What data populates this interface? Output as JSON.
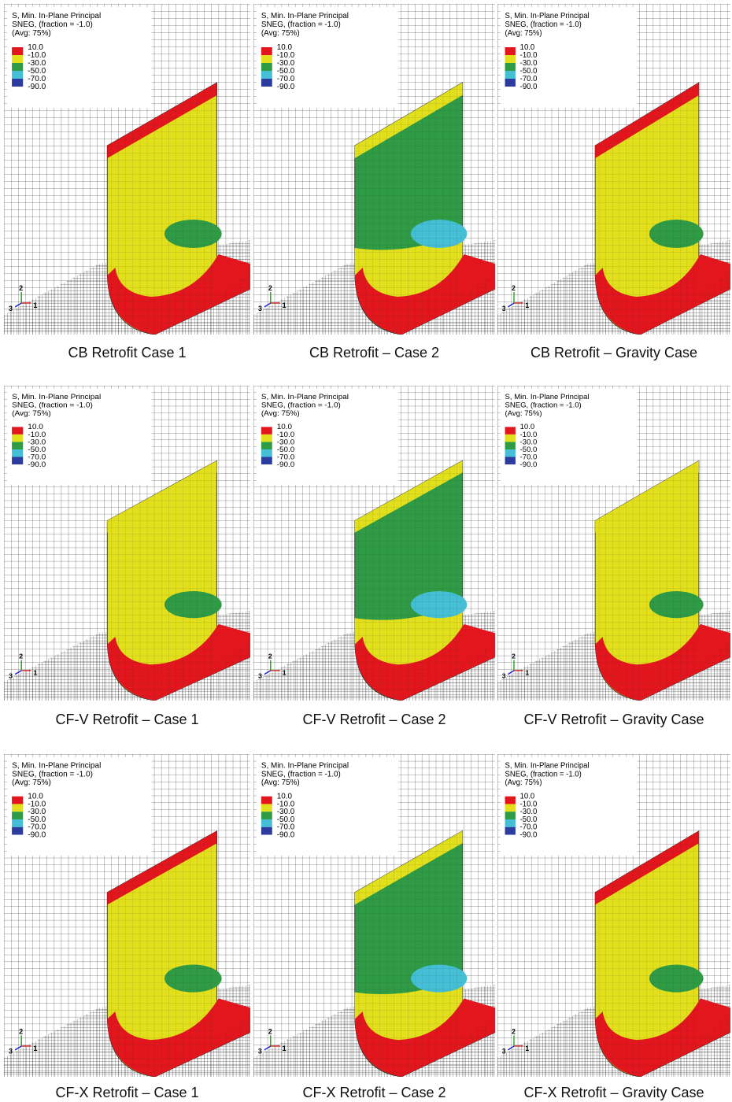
{
  "panels": [
    {
      "caption": "CB Retrofit Case 1",
      "legend": {
        "title": [
          "S, Min. In-Plane Principal",
          "SNEG, (fraction = -1.0)",
          "(Avg: 75%)"
        ],
        "levels": [
          "10.0",
          "-10.0",
          "-30.0",
          "-50.0",
          "-70.0",
          "-90.0"
        ]
      },
      "triad": [
        "1",
        "2",
        "3"
      ]
    },
    {
      "caption": "CB Retrofit – Case 2",
      "legend": {
        "title": [
          "S, Min. In-Plane Principal",
          "SNEG, (fraction = -1.0)",
          "(Avg: 75%)"
        ],
        "levels": [
          "10.0",
          "-10.0",
          "-30.0",
          "-50.0",
          "-70.0",
          "-90.0"
        ]
      },
      "triad": [
        "1",
        "2",
        "3"
      ]
    },
    {
      "caption": "CB Retrofit – Gravity Case",
      "legend": {
        "title": [
          "S, Min. In-Plane Principal",
          "SNEG, (fraction = -1.0)",
          "(Avg: 75%)"
        ],
        "levels": [
          "10.0",
          "-10.0",
          "-30.0",
          "-50.0",
          "-70.0",
          "-90.0"
        ]
      },
      "triad": [
        "1",
        "2",
        "3"
      ]
    },
    {
      "caption": "CF-V Retrofit – Case 1",
      "legend": {
        "title": [
          "S, Min. In-Plane Principal",
          "SNEG, (fraction = -1.0)",
          "(Avg: 75%)"
        ],
        "levels": [
          "10.0",
          "-10.0",
          "-30.0",
          "-50.0",
          "-70.0",
          "-90.0"
        ]
      },
      "triad": [
        "1",
        "2",
        "3"
      ]
    },
    {
      "caption": "CF-V Retrofit – Case 2",
      "legend": {
        "title": [
          "S, Min. In-Plane Principal",
          "SNEG, (fraction = -1.0)",
          "(Avg: 75%)"
        ],
        "levels": [
          "10.0",
          "-10.0",
          "-30.0",
          "-50.0",
          "-70.0",
          "-90.0"
        ]
      },
      "triad": [
        "1",
        "2",
        "3"
      ]
    },
    {
      "caption": "CF-V Retrofit – Gravity Case",
      "legend": {
        "title": [
          "S, Min. In-Plane Principal",
          "SNEG, (fraction = -1.0)",
          "(Avg: 75%)"
        ],
        "levels": [
          "10.0",
          "-10.0",
          "-30.0",
          "-50.0",
          "-70.0",
          "-90.0"
        ]
      },
      "triad": [
        "1",
        "2",
        "3"
      ]
    },
    {
      "caption": "CF-X Retrofit – Case 1",
      "legend": {
        "title": [
          "S, Min. In-Plane Principal",
          "SNEG, (fraction = -1.0)",
          "(Avg: 75%)"
        ],
        "levels": [
          "10.0",
          "-10.0",
          "-30.0",
          "-50.0",
          "-70.0",
          "-90.0"
        ]
      },
      "triad": [
        "1",
        "2",
        "3"
      ]
    },
    {
      "caption": "CF-X Retrofit – Case 2",
      "legend": {
        "title": [
          "S, Min. In-Plane Principal",
          "SNEG, (fraction = -1.0)",
          "(Avg: 75%)"
        ],
        "levels": [
          "10.0",
          "-10.0",
          "-30.0",
          "-50.0",
          "-70.0",
          "-90.0"
        ]
      },
      "triad": [
        "1",
        "2",
        "3"
      ]
    },
    {
      "caption": "CF-X Retrofit – Gravity Case",
      "legend": {
        "title": [
          "S, Min. In-Plane Principal",
          "SNEG, (fraction = -1.0)",
          "(Avg: 75%)"
        ],
        "levels": [
          "10.0",
          "-10.0",
          "-30.0",
          "-50.0",
          "-70.0",
          "-90.0"
        ]
      },
      "triad": [
        "1",
        "2",
        "3"
      ]
    }
  ]
}
